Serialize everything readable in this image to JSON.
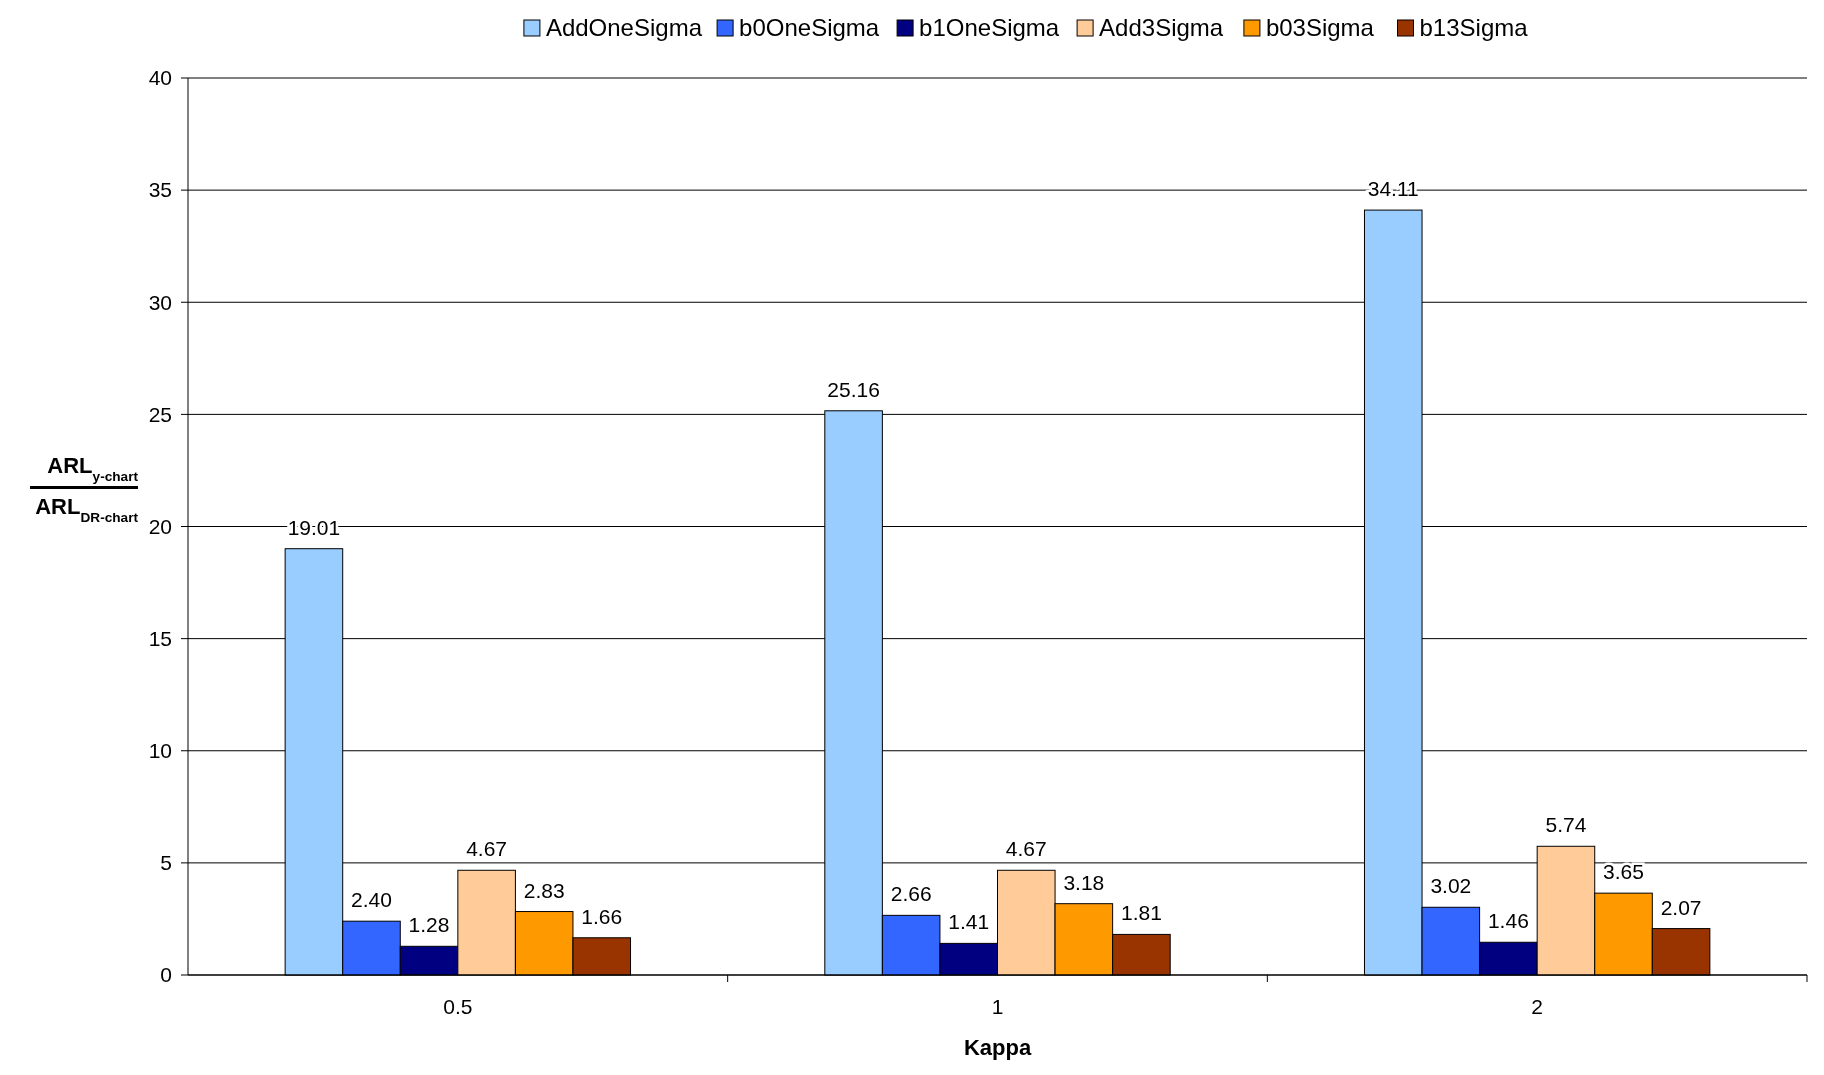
{
  "chart_data": {
    "type": "bar",
    "xlabel": "Kappa",
    "ylabel": "ARL$_{y-chart}$\nARL$_{DR-chart}$",
    "categories": [
      "0.5",
      "1",
      "2"
    ],
    "series": [
      {
        "name": "AddOneSigma",
        "color": "#99ccff",
        "values": [
          19.01,
          25.16,
          34.11
        ]
      },
      {
        "name": "b0OneSigma",
        "color": "#3366ff",
        "values": [
          2.4,
          2.66,
          3.02
        ]
      },
      {
        "name": "b1OneSigma",
        "color": "#000080",
        "values": [
          1.28,
          1.41,
          1.46
        ]
      },
      {
        "name": "Add3Sigma",
        "color": "#ffcc99",
        "values": [
          4.67,
          4.67,
          5.74
        ]
      },
      {
        "name": "b03Sigma",
        "color": "#ff9900",
        "values": [
          2.83,
          3.18,
          3.65
        ]
      },
      {
        "name": "b13Sigma",
        "color": "#993300",
        "values": [
          1.66,
          1.81,
          2.07
        ]
      }
    ],
    "value_labels": [
      [
        "19.01",
        "25.16",
        "34.11"
      ],
      [
        "2.40",
        "2.66",
        "3.02"
      ],
      [
        "1.28",
        "1.41",
        "1.46"
      ],
      [
        "4.67",
        "4.67",
        "5.74"
      ],
      [
        "2.83",
        "3.18",
        "3.65"
      ],
      [
        "1.66",
        "1.81",
        "2.07"
      ]
    ],
    "ylim": [
      0,
      40
    ],
    "yticks": [
      0,
      5,
      10,
      15,
      20,
      25,
      30,
      35,
      40
    ],
    "grid": "y",
    "legend": "top"
  }
}
